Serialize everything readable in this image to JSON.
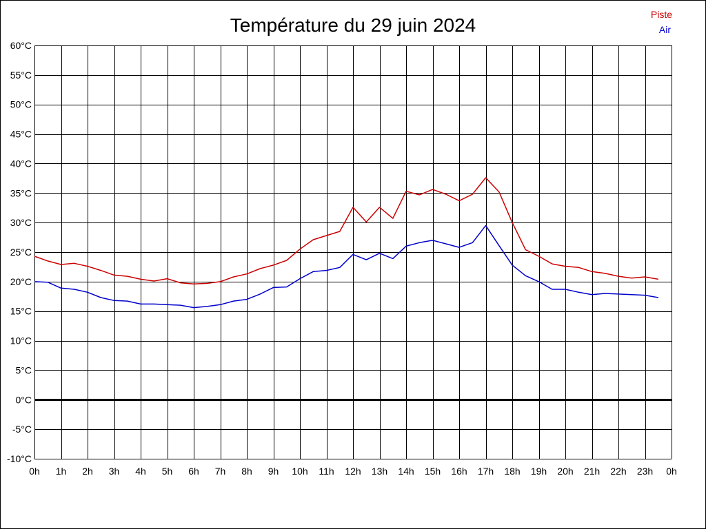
{
  "chart_data": {
    "type": "line",
    "title": "Température du 29 juin 2024",
    "xlabel": "",
    "ylabel": "",
    "x_tick_labels": [
      "0h",
      "1h",
      "2h",
      "3h",
      "4h",
      "5h",
      "6h",
      "7h",
      "8h",
      "9h",
      "10h",
      "11h",
      "12h",
      "13h",
      "14h",
      "15h",
      "16h",
      "17h",
      "18h",
      "19h",
      "20h",
      "21h",
      "22h",
      "23h",
      "0h"
    ],
    "y_tick_labels": [
      "60°C",
      "55°C",
      "50°C",
      "45°C",
      "40°C",
      "35°C",
      "30°C",
      "25°C",
      "20°C",
      "15°C",
      "10°C",
      "5°C",
      "0°C",
      "-5°C",
      "-10°C"
    ],
    "xlim": [
      0,
      24
    ],
    "ylim": [
      -10,
      60
    ],
    "y_ticks": [
      60,
      55,
      50,
      45,
      40,
      35,
      30,
      25,
      20,
      15,
      10,
      5,
      0,
      -5,
      -10
    ],
    "grid": true,
    "legend_position": "top-right",
    "x": [
      0,
      0.5,
      1,
      1.5,
      2,
      2.5,
      3,
      3.5,
      4,
      4.5,
      5,
      5.5,
      6,
      6.5,
      7,
      7.5,
      8,
      8.5,
      9,
      9.5,
      10,
      10.5,
      11,
      11.5,
      12,
      12.5,
      13,
      13.5,
      14,
      14.5,
      15,
      15.5,
      16,
      16.5,
      17,
      17.5,
      18,
      18.5,
      19,
      19.5,
      20,
      20.5,
      21,
      21.5,
      22,
      22.5,
      23,
      23.5
    ],
    "series": [
      {
        "name": "Piste",
        "color": "#cc0000",
        "values": [
          24.3,
          23.5,
          22.9,
          23.1,
          22.6,
          21.9,
          21.1,
          20.9,
          20.4,
          20.1,
          20.5,
          19.8,
          19.6,
          19.7,
          20.0,
          20.8,
          21.3,
          22.2,
          22.8,
          23.6,
          25.5,
          27.1,
          27.8,
          28.5,
          32.6,
          30.1,
          32.6,
          30.7,
          35.3,
          34.7,
          35.6,
          34.8,
          33.7,
          34.8,
          37.6,
          35.2,
          30.0,
          25.4,
          24.3,
          23.0,
          22.6,
          22.4,
          21.7,
          21.4,
          20.9,
          20.6,
          20.8,
          20.4
        ]
      },
      {
        "name": "Air",
        "color": "#0000cc",
        "values": [
          20.0,
          19.9,
          18.9,
          18.7,
          18.2,
          17.3,
          16.8,
          16.7,
          16.2,
          16.2,
          16.1,
          16.0,
          15.6,
          15.8,
          16.1,
          16.7,
          17.0,
          17.9,
          19.0,
          19.1,
          20.5,
          21.7,
          21.9,
          22.4,
          24.6,
          23.7,
          24.8,
          23.9,
          26.0,
          26.6,
          27.0,
          26.4,
          25.8,
          26.6,
          29.5,
          26.1,
          22.8,
          21.0,
          20.0,
          18.7,
          18.7,
          18.2,
          17.8,
          18.0,
          17.9,
          17.8,
          17.7,
          17.3
        ]
      }
    ],
    "zero_line": true
  },
  "colors": {
    "background": "#ffffff",
    "grid": "#000000",
    "piste": "#cc0000",
    "air": "#0000cc"
  }
}
